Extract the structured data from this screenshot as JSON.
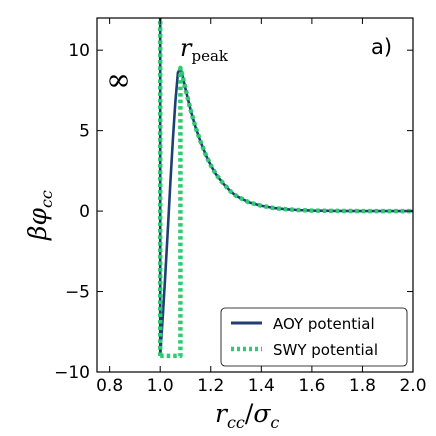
{
  "chart_data": {
    "type": "line",
    "panel_label": "a)",
    "xlabel": {
      "main": "r",
      "sub1": "cc",
      "slash": "/",
      "main2": "σ",
      "sub2": "c"
    },
    "ylabel": {
      "main": "βφ",
      "sub": "cc"
    },
    "xlim": [
      0.75,
      2.0
    ],
    "ylim": [
      -10,
      12
    ],
    "xticks": [
      0.8,
      1.0,
      1.2,
      1.4,
      1.6,
      1.8,
      2.0
    ],
    "xtick_labels": [
      "0.8",
      "1.0",
      "1.2",
      "1.4",
      "1.6",
      "1.8",
      "2.0"
    ],
    "yticks": [
      -10,
      -5,
      0,
      5,
      10
    ],
    "ytick_labels": [
      "−10",
      "−5",
      "0",
      "5",
      "10"
    ],
    "annotations": {
      "infinity": "∞",
      "peak": {
        "main": "r",
        "sub": "peak"
      }
    },
    "series": [
      {
        "name": "AOY potential",
        "color": "#1f3f73",
        "style": "solid",
        "x": [
          1.0,
          1.01,
          1.02,
          1.03,
          1.04,
          1.05,
          1.06,
          1.07,
          1.08,
          1.09,
          1.1,
          1.12,
          1.14,
          1.16,
          1.18,
          1.2,
          1.22,
          1.25,
          1.28,
          1.3,
          1.35,
          1.4,
          1.45,
          1.5,
          1.55,
          1.6,
          1.7,
          1.8,
          1.9,
          2.0
        ],
        "y": [
          -9.0,
          -6.6,
          -4.0,
          -1.2,
          1.7,
          4.4,
          6.8,
          8.6,
          8.9,
          8.3,
          7.6,
          6.3,
          5.2,
          4.3,
          3.5,
          2.85,
          2.3,
          1.7,
          1.2,
          0.95,
          0.55,
          0.33,
          0.19,
          0.11,
          0.06,
          0.03,
          0.01,
          0.0,
          0.0,
          0.0
        ],
        "hard_core_line": true
      },
      {
        "name": "SWY potential",
        "color": "#2ecc71",
        "style": "dotted",
        "x": [
          1.0,
          1.08,
          1.08,
          1.09,
          1.1,
          1.12,
          1.14,
          1.16,
          1.18,
          1.2,
          1.22,
          1.25,
          1.28,
          1.3,
          1.35,
          1.4,
          1.45,
          1.5,
          1.55,
          1.6,
          1.7,
          1.8,
          1.9,
          2.0
        ],
        "y": [
          -9.0,
          -9.0,
          8.9,
          8.3,
          7.6,
          6.3,
          5.2,
          4.3,
          3.5,
          2.85,
          2.3,
          1.7,
          1.2,
          0.95,
          0.55,
          0.33,
          0.19,
          0.11,
          0.06,
          0.03,
          0.01,
          0.0,
          0.0,
          0.0
        ],
        "hard_core_line": true
      }
    ],
    "legend": {
      "position": "bottom-right"
    }
  }
}
